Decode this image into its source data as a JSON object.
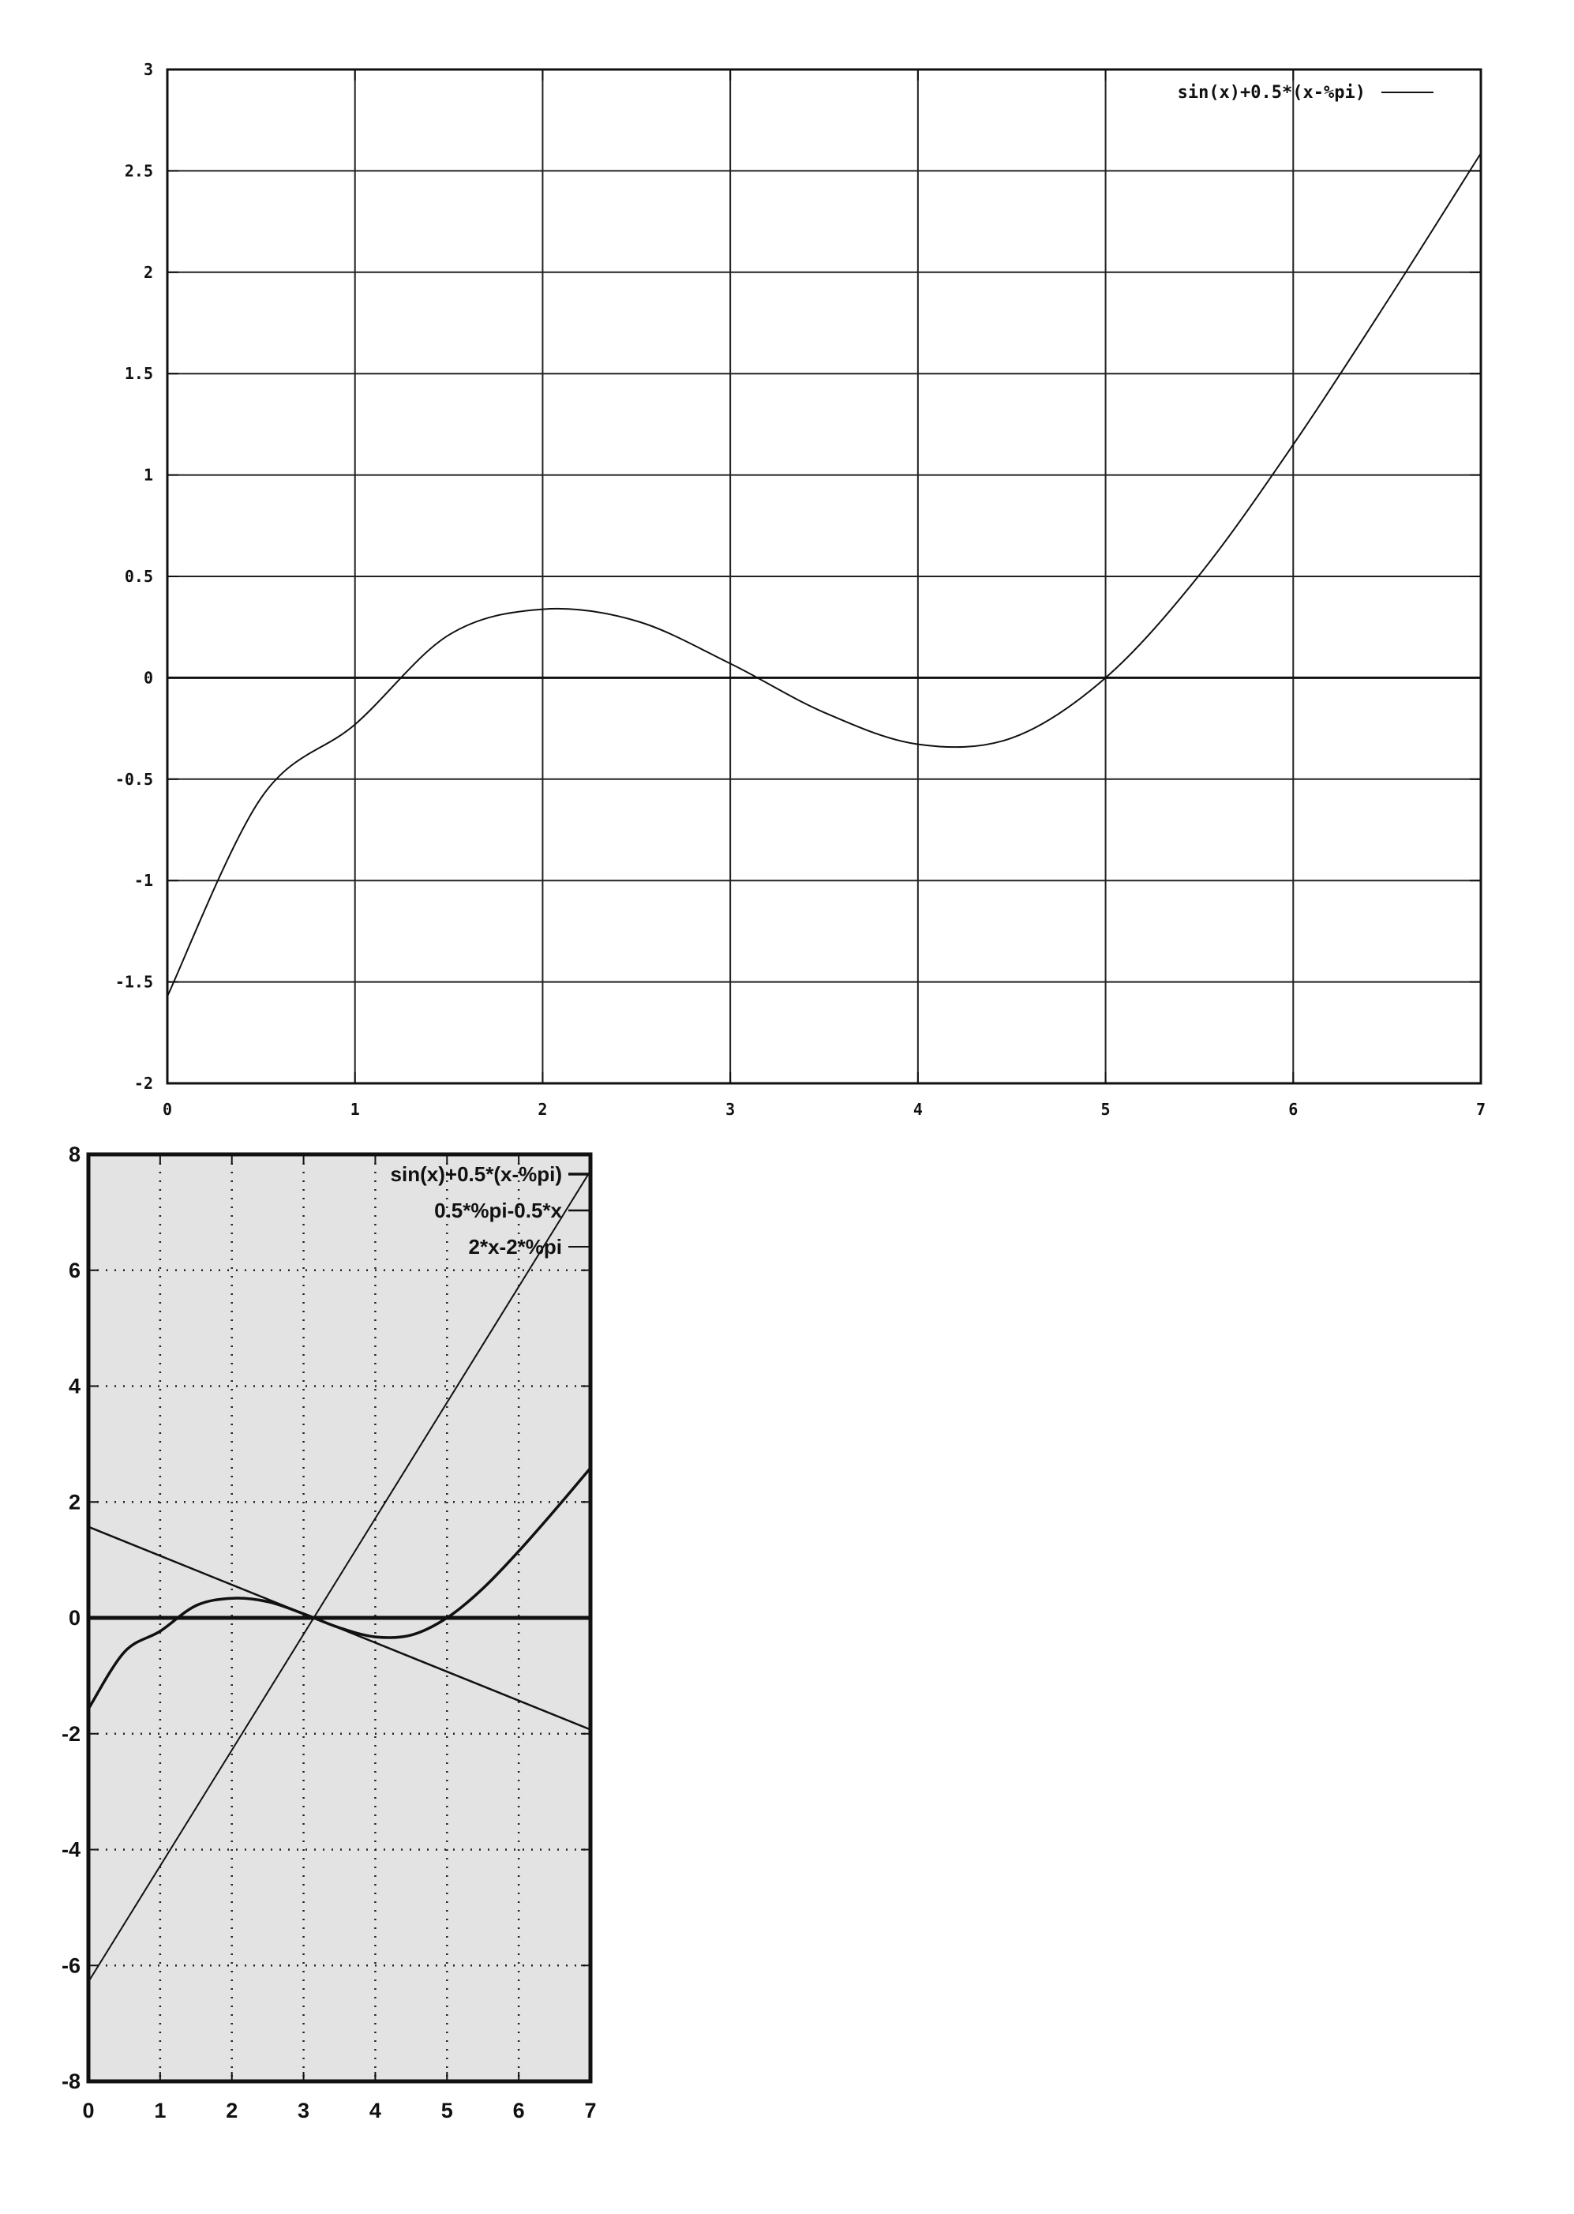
{
  "chart_data": [
    {
      "type": "line",
      "title": "",
      "xlabel": "",
      "ylabel": "",
      "xlim": [
        0,
        7
      ],
      "ylim": [
        -2,
        3
      ],
      "x_ticks": [
        "0",
        "1",
        "2",
        "3",
        "4",
        "5",
        "6",
        "7"
      ],
      "y_ticks": [
        "-2",
        "-1.5",
        "-1",
        "-0.5",
        "0",
        "0.5",
        "1",
        "1.5",
        "2",
        "2.5",
        "3"
      ],
      "grid": "solid",
      "legend_position": "top-right",
      "zero_line": true,
      "series": [
        {
          "name": "sin(x)+0.5*(x-%pi)",
          "x": [
            0,
            0.5,
            1,
            1.5,
            2,
            2.5,
            3,
            3.5,
            4,
            4.5,
            5,
            5.5,
            6,
            6.5,
            7
          ],
          "y": [
            -1.571,
            -0.592,
            -0.23,
            0.211,
            0.338,
            0.28,
            0.07,
            -0.171,
            -0.328,
            -0.297,
            0.0,
            0.507,
            1.15,
            1.855,
            2.587
          ]
        }
      ]
    },
    {
      "type": "line",
      "title": "",
      "xlabel": "",
      "ylabel": "",
      "xlim": [
        0,
        7
      ],
      "ylim": [
        -8,
        8
      ],
      "x_ticks": [
        "0",
        "1",
        "2",
        "3",
        "4",
        "5",
        "6",
        "7"
      ],
      "y_ticks": [
        "-8",
        "-6",
        "-4",
        "-2",
        "0",
        "2",
        "4",
        "6",
        "8"
      ],
      "grid": "dotted",
      "legend_position": "top-right",
      "zero_line": true,
      "series": [
        {
          "name": "sin(x)+0.5*(x-%pi)",
          "x": [
            0,
            0.5,
            1,
            1.5,
            2,
            2.5,
            3,
            3.5,
            4,
            4.5,
            5,
            5.5,
            6,
            6.5,
            7
          ],
          "y": [
            -1.571,
            -0.592,
            -0.23,
            0.211,
            0.338,
            0.28,
            0.07,
            -0.171,
            -0.328,
            -0.297,
            0.0,
            0.507,
            1.15,
            1.855,
            2.587
          ]
        },
        {
          "name": "0.5*%pi-0.5*x",
          "x": [
            0,
            7
          ],
          "y": [
            1.571,
            -1.929
          ]
        },
        {
          "name": "2*x-2*%pi",
          "x": [
            0,
            7
          ],
          "y": [
            -6.283,
            7.717
          ]
        }
      ]
    }
  ]
}
